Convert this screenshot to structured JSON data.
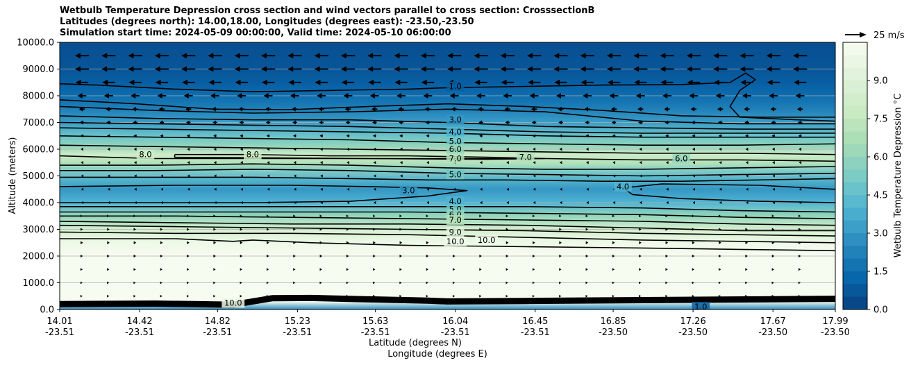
{
  "title_lines": [
    "Wetbulb Temperature Depression cross section and wind vectors parallel to cross section: CrosssectionB",
    "Latitudes (degrees north): 14.00,18.00, Longitudes (degrees east): -23.50,-23.50",
    "Simulation start time: 2024-05-09 00:00:00, Valid time: 2024-05-10 06:00:00"
  ],
  "chart_data": {
    "type": "heatmap",
    "subtype": "filled contour cross section with line contours and wind vectors",
    "xlabel_lines": [
      "Latitude (degrees N)",
      "Longitude (degrees E)"
    ],
    "ylabel": "Altitude (meters)",
    "xticks": [
      {
        "lat": "14.01",
        "lon": "-23.51"
      },
      {
        "lat": "14.42",
        "lon": "-23.51"
      },
      {
        "lat": "14.82",
        "lon": "-23.51"
      },
      {
        "lat": "15.23",
        "lon": "-23.51"
      },
      {
        "lat": "15.63",
        "lon": "-23.51"
      },
      {
        "lat": "16.04",
        "lon": "-23.51"
      },
      {
        "lat": "16.45",
        "lon": "-23.51"
      },
      {
        "lat": "16.85",
        "lon": "-23.50"
      },
      {
        "lat": "17.26",
        "lon": "-23.50"
      },
      {
        "lat": "17.67",
        "lon": "-23.50"
      },
      {
        "lat": "17.99",
        "lon": "-23.50"
      }
    ],
    "xlim": [
      14.01,
      17.99
    ],
    "yticks": [
      "0.0",
      "1000.0",
      "2000.0",
      "3000.0",
      "4000.0",
      "5000.0",
      "6000.0",
      "7000.0",
      "8000.0",
      "9000.0",
      "10000.0"
    ],
    "ylim": [
      0,
      10000
    ],
    "grid": "horizontal",
    "colorbar": {
      "label": "Wetbulb Temperature Depression °C",
      "min": 0,
      "max": 10.5,
      "step": 0.5,
      "ticks": [
        "0.0",
        "1.5",
        "3.0",
        "4.5",
        "6.0",
        "7.5",
        "9.0"
      ],
      "colormap": "GnBu_r",
      "color_low": "#084081",
      "color_high": "#f7fcf0"
    },
    "quiver_key": {
      "label": "25 m/s",
      "speed": 25
    },
    "wind_rows": [
      {
        "altitude": 9500,
        "u": -22
      },
      {
        "altitude": 9000,
        "u": -22
      },
      {
        "altitude": 8500,
        "u": -20
      },
      {
        "altitude": 8000,
        "u": -14
      },
      {
        "altitude": 7500,
        "u": -9
      },
      {
        "altitude": 7000,
        "u": -7
      },
      {
        "altitude": 6500,
        "u": -5
      },
      {
        "altitude": 6000,
        "u": -4
      },
      {
        "altitude": 5500,
        "u": -3.5
      },
      {
        "altitude": 5000,
        "u": -3
      },
      {
        "altitude": 4500,
        "u": -3
      },
      {
        "altitude": 4000,
        "u": -3
      },
      {
        "altitude": 3500,
        "u": 2.5
      },
      {
        "altitude": 3000,
        "u": 3
      },
      {
        "altitude": 2500,
        "u": 3.5
      },
      {
        "altitude": 2000,
        "u": 3
      },
      {
        "altitude": 1500,
        "u": 2.5
      },
      {
        "altitude": 1000,
        "u": 2
      },
      {
        "altitude": 500,
        "u": 2
      }
    ],
    "contour_lines": [
      {
        "level": "1.0",
        "points": [
          [
            14.01,
            8450
          ],
          [
            14.2,
            8400
          ],
          [
            14.6,
            8250
          ],
          [
            15.0,
            8150
          ],
          [
            15.4,
            8200
          ],
          [
            15.8,
            8250
          ],
          [
            16.0,
            8300
          ],
          [
            16.4,
            8350
          ],
          [
            16.8,
            8400
          ],
          [
            17.2,
            8420
          ],
          [
            17.45,
            8500
          ],
          [
            17.53,
            8850
          ],
          [
            17.58,
            8600
          ],
          [
            17.5,
            8200
          ],
          [
            17.45,
            7600
          ],
          [
            17.5,
            7200
          ],
          [
            17.8,
            7100
          ],
          [
            17.99,
            7050
          ]
        ]
      },
      {
        "level": "2.0",
        "points": [
          [
            14.01,
            7850
          ],
          [
            14.4,
            7700
          ],
          [
            14.8,
            7500
          ],
          [
            15.2,
            7480
          ],
          [
            15.6,
            7600
          ],
          [
            16.0,
            7700
          ],
          [
            16.4,
            7600
          ],
          [
            16.8,
            7450
          ],
          [
            17.2,
            7250
          ],
          [
            17.6,
            7200
          ],
          [
            17.99,
            7200
          ]
        ]
      },
      {
        "level": "2.5",
        "points": [
          [
            14.01,
            7600
          ],
          [
            14.5,
            7450
          ],
          [
            15.0,
            7350
          ],
          [
            15.5,
            7400
          ],
          [
            16.0,
            7500
          ],
          [
            16.5,
            7400
          ],
          [
            17.0,
            7050
          ],
          [
            17.5,
            6950
          ],
          [
            17.99,
            6950
          ]
        ]
      },
      {
        "level": "3.0",
        "points": [
          [
            14.01,
            7250
          ],
          [
            14.5,
            7150
          ],
          [
            15.0,
            7100
          ],
          [
            15.5,
            7100
          ],
          [
            16.0,
            7000
          ],
          [
            16.5,
            6850
          ],
          [
            17.0,
            6800
          ],
          [
            17.5,
            6750
          ],
          [
            17.99,
            6750
          ]
        ]
      },
      {
        "level": "3.5",
        "points": [
          [
            14.01,
            7000
          ],
          [
            14.5,
            6950
          ],
          [
            15.0,
            6900
          ],
          [
            15.5,
            6850
          ],
          [
            16.0,
            6750
          ],
          [
            16.5,
            6650
          ],
          [
            17.0,
            6600
          ],
          [
            17.5,
            6600
          ],
          [
            17.99,
            6600
          ]
        ]
      },
      {
        "level": "4.0",
        "points": [
          [
            14.01,
            6800
          ],
          [
            14.5,
            6750
          ],
          [
            15.0,
            6700
          ],
          [
            15.5,
            6650
          ],
          [
            16.0,
            6600
          ],
          [
            16.5,
            6500
          ],
          [
            17.0,
            6450
          ],
          [
            17.5,
            6450
          ],
          [
            17.99,
            6450
          ]
        ]
      },
      {
        "level": "5.0",
        "points": [
          [
            14.01,
            6500
          ],
          [
            14.5,
            6450
          ],
          [
            15.0,
            6400
          ],
          [
            15.5,
            6350
          ],
          [
            16.0,
            6250
          ],
          [
            16.5,
            6200
          ],
          [
            17.0,
            6150
          ],
          [
            17.5,
            6150
          ],
          [
            17.99,
            6200
          ]
        ]
      },
      {
        "level": "6.0",
        "points": [
          [
            14.01,
            6150
          ],
          [
            14.5,
            6100
          ],
          [
            15.0,
            6050
          ],
          [
            15.5,
            6000
          ],
          [
            16.0,
            5950
          ],
          [
            16.5,
            5900
          ],
          [
            17.0,
            5850
          ],
          [
            17.5,
            5850
          ],
          [
            17.99,
            5800
          ]
        ]
      },
      {
        "level": "7.0",
        "points": [
          [
            14.01,
            5750
          ],
          [
            14.5,
            5650
          ],
          [
            15.0,
            5650
          ],
          [
            15.5,
            5650
          ],
          [
            16.0,
            5650
          ],
          [
            16.5,
            5650
          ],
          [
            17.0,
            5600
          ],
          [
            17.5,
            5600
          ],
          [
            17.99,
            5550
          ]
        ]
      },
      {
        "level": "8.0",
        "points": [
          [
            14.6,
            5800
          ],
          [
            15.0,
            5800
          ],
          [
            15.4,
            5750
          ],
          [
            15.8,
            5750
          ],
          [
            16.2,
            5700
          ],
          [
            16.5,
            5650
          ],
          [
            16.2,
            5620
          ],
          [
            15.6,
            5650
          ],
          [
            15.0,
            5680
          ],
          [
            14.6,
            5700
          ],
          [
            14.6,
            5800
          ]
        ]
      },
      {
        "level": "7.0",
        "points": [
          [
            14.01,
            5400
          ],
          [
            14.5,
            5400
          ],
          [
            15.0,
            5450
          ],
          [
            15.5,
            5400
          ],
          [
            16.0,
            5300
          ],
          [
            16.5,
            5250
          ],
          [
            17.0,
            5250
          ],
          [
            17.5,
            5300
          ],
          [
            17.99,
            5350
          ]
        ]
      },
      {
        "level": "6.0",
        "points": [
          [
            14.01,
            5200
          ],
          [
            14.5,
            5200
          ],
          [
            15.0,
            5250
          ],
          [
            15.5,
            5200
          ],
          [
            16.0,
            5100
          ],
          [
            16.5,
            5050
          ],
          [
            17.0,
            5000
          ],
          [
            17.5,
            5050
          ],
          [
            17.99,
            5100
          ]
        ]
      },
      {
        "level": "5.0",
        "points": [
          [
            14.01,
            4950
          ],
          [
            14.5,
            4950
          ],
          [
            15.0,
            4950
          ],
          [
            15.5,
            4900
          ],
          [
            15.9,
            4850
          ],
          [
            16.3,
            4850
          ],
          [
            16.8,
            4800
          ],
          [
            17.2,
            4800
          ],
          [
            17.6,
            4850
          ],
          [
            17.99,
            4900
          ]
        ]
      },
      {
        "level": "4.0",
        "points": [
          [
            14.01,
            4600
          ],
          [
            14.6,
            4650
          ],
          [
            15.2,
            4650
          ],
          [
            15.6,
            4600
          ],
          [
            15.9,
            4550
          ],
          [
            16.1,
            4450
          ],
          [
            15.9,
            4250
          ],
          [
            15.5,
            4050
          ],
          [
            15.0,
            4000
          ],
          [
            14.5,
            4000
          ],
          [
            14.01,
            4000
          ]
        ]
      },
      {
        "level": "4.0",
        "points": [
          [
            17.99,
            4500
          ],
          [
            17.6,
            4650
          ],
          [
            17.1,
            4700
          ],
          [
            16.9,
            4550
          ],
          [
            16.95,
            4300
          ],
          [
            17.2,
            4150
          ],
          [
            17.6,
            4050
          ],
          [
            17.99,
            4000
          ]
        ]
      },
      {
        "level": "4.0",
        "points": [
          [
            14.01,
            3850
          ],
          [
            14.6,
            3850
          ],
          [
            15.2,
            3850
          ],
          [
            15.8,
            3850
          ],
          [
            16.4,
            3850
          ],
          [
            17.0,
            3800
          ],
          [
            17.5,
            3700
          ],
          [
            17.99,
            3650
          ]
        ]
      },
      {
        "level": "5.0",
        "points": [
          [
            14.01,
            3650
          ],
          [
            14.6,
            3650
          ],
          [
            15.2,
            3650
          ],
          [
            15.8,
            3650
          ],
          [
            16.4,
            3600
          ],
          [
            17.0,
            3550
          ],
          [
            17.5,
            3450
          ],
          [
            17.99,
            3400
          ]
        ]
      },
      {
        "level": "6.0",
        "points": [
          [
            14.01,
            3500
          ],
          [
            14.6,
            3500
          ],
          [
            15.2,
            3450
          ],
          [
            15.8,
            3400
          ],
          [
            16.4,
            3350
          ],
          [
            17.0,
            3300
          ],
          [
            17.5,
            3200
          ],
          [
            17.99,
            3150
          ]
        ]
      },
      {
        "level": "7.0",
        "points": [
          [
            14.01,
            3300
          ],
          [
            14.6,
            3250
          ],
          [
            15.2,
            3200
          ],
          [
            15.8,
            3200
          ],
          [
            16.4,
            3150
          ],
          [
            17.0,
            3050
          ],
          [
            17.5,
            2950
          ],
          [
            17.99,
            2950
          ]
        ]
      },
      {
        "level": "8.0",
        "points": [
          [
            14.01,
            3150
          ],
          [
            14.6,
            3100
          ],
          [
            15.2,
            3050
          ],
          [
            15.8,
            3000
          ],
          [
            16.4,
            2950
          ],
          [
            17.0,
            2850
          ],
          [
            17.5,
            2800
          ],
          [
            17.99,
            2750
          ]
        ]
      },
      {
        "level": "9.0",
        "points": [
          [
            14.01,
            2900
          ],
          [
            14.6,
            2850
          ],
          [
            15.2,
            2850
          ],
          [
            15.8,
            2800
          ],
          [
            16.4,
            2700
          ],
          [
            17.0,
            2600
          ],
          [
            17.5,
            2550
          ],
          [
            17.99,
            2500
          ]
        ]
      },
      {
        "level": "10.0",
        "points": [
          [
            14.01,
            2650
          ],
          [
            14.6,
            2650
          ],
          [
            14.9,
            2550
          ],
          [
            15.0,
            2600
          ],
          [
            15.3,
            2500
          ],
          [
            15.8,
            2400
          ],
          [
            16.4,
            2350
          ],
          [
            17.0,
            2300
          ],
          [
            17.5,
            2250
          ],
          [
            17.99,
            2200
          ]
        ]
      }
    ],
    "contour_labels": [
      {
        "text": "1.0",
        "lat": 16.04,
        "alt": 8350
      },
      {
        "text": "3.0",
        "lat": 16.04,
        "alt": 7100
      },
      {
        "text": "4.0",
        "lat": 16.04,
        "alt": 6650
      },
      {
        "text": "5.0",
        "lat": 16.04,
        "alt": 6300
      },
      {
        "text": "6.0",
        "lat": 16.04,
        "alt": 6000
      },
      {
        "text": "7.0",
        "lat": 16.04,
        "alt": 5650
      },
      {
        "text": "8.0",
        "lat": 14.45,
        "alt": 5800
      },
      {
        "text": "8.0",
        "lat": 15.0,
        "alt": 5800
      },
      {
        "text": "7.0",
        "lat": 16.4,
        "alt": 5700
      },
      {
        "text": "6.0",
        "lat": 17.2,
        "alt": 5650
      },
      {
        "text": "5.0",
        "lat": 16.04,
        "alt": 5050
      },
      {
        "text": "3.0",
        "lat": 15.8,
        "alt": 4450
      },
      {
        "text": "4.0",
        "lat": 16.9,
        "alt": 4600
      },
      {
        "text": "4.0",
        "lat": 16.04,
        "alt": 4050
      },
      {
        "text": "5.0",
        "lat": 16.04,
        "alt": 3750
      },
      {
        "text": "6.0",
        "lat": 16.04,
        "alt": 3550
      },
      {
        "text": "7.0",
        "lat": 16.04,
        "alt": 3350
      },
      {
        "text": "9.0",
        "lat": 16.04,
        "alt": 2900
      },
      {
        "text": "10.0",
        "lat": 16.04,
        "alt": 2550
      },
      {
        "text": "10.0",
        "lat": 16.2,
        "alt": 2600
      },
      {
        "text": "10.0",
        "lat": 14.9,
        "alt": 250
      },
      {
        "text": "1.0",
        "lat": 17.3,
        "alt": 100
      }
    ]
  }
}
